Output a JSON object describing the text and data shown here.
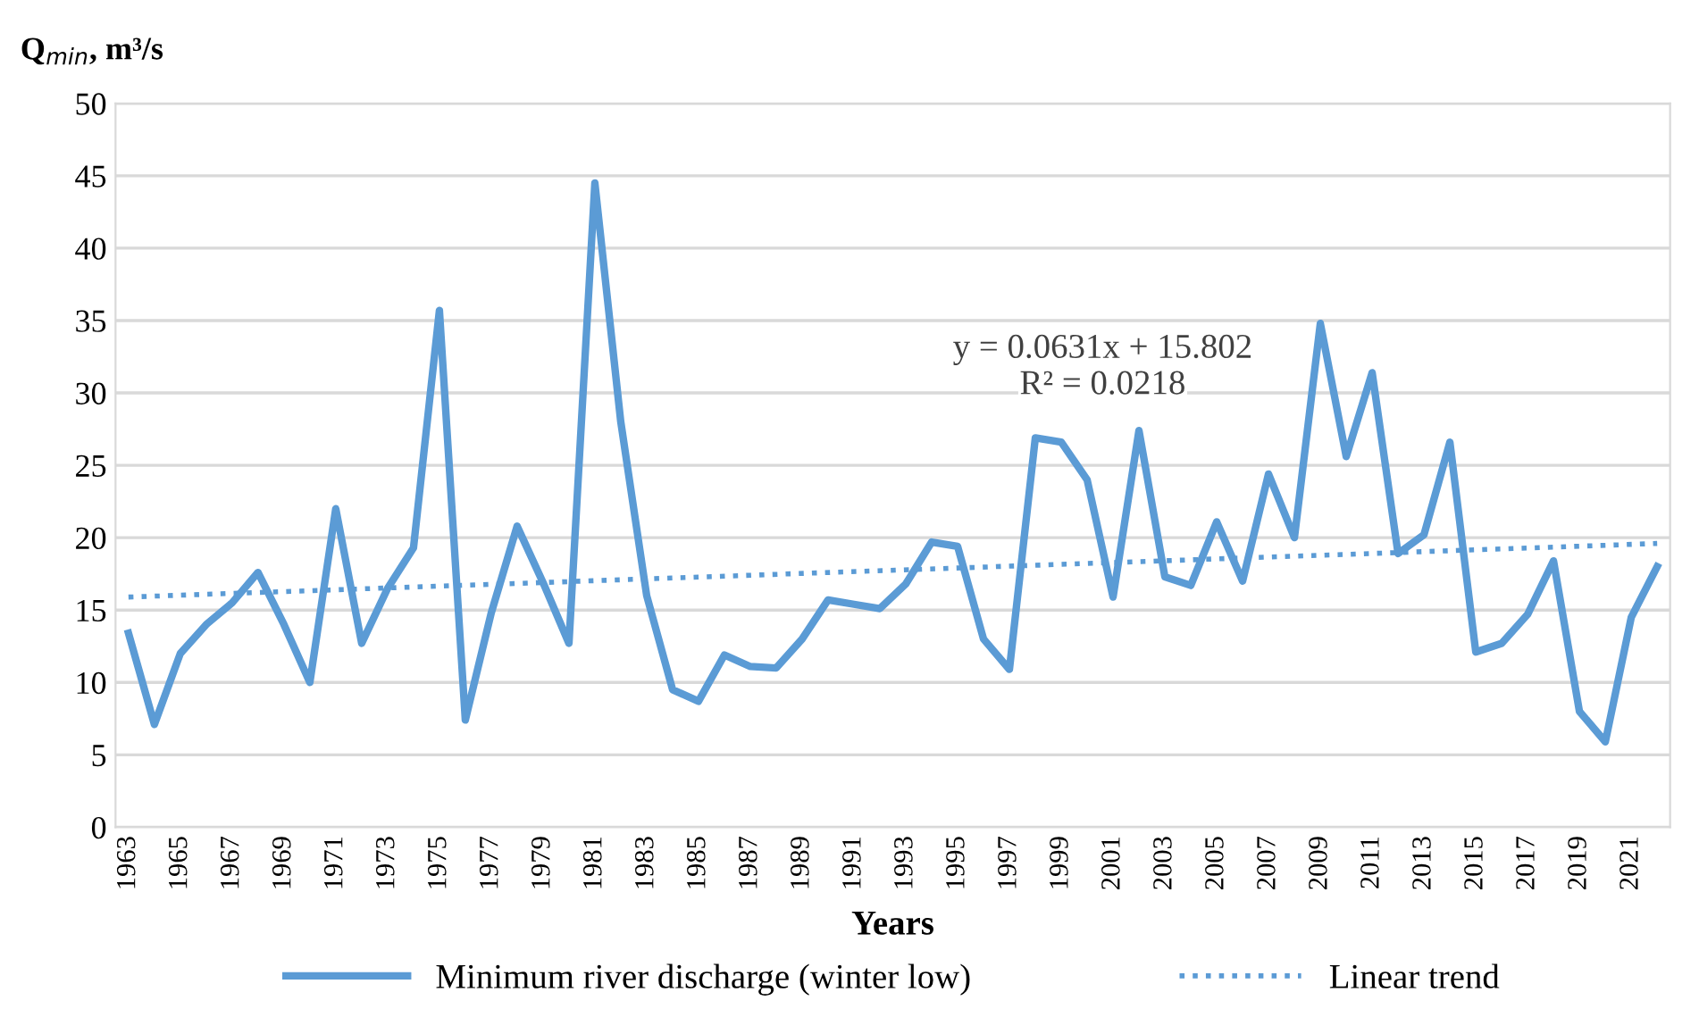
{
  "chart_data": {
    "type": "line",
    "ylabel": "Q$_{min}$, m³/s",
    "xlabel": "Years",
    "x": [
      1963,
      1964,
      1965,
      1966,
      1967,
      1968,
      1969,
      1970,
      1971,
      1972,
      1973,
      1974,
      1975,
      1976,
      1977,
      1978,
      1979,
      1980,
      1981,
      1982,
      1983,
      1984,
      1985,
      1986,
      1987,
      1988,
      1989,
      1990,
      1991,
      1992,
      1993,
      1994,
      1995,
      1996,
      1997,
      1998,
      1999,
      2000,
      2001,
      2002,
      2003,
      2004,
      2005,
      2006,
      2007,
      2008,
      2009,
      2010,
      2011,
      2012,
      2013,
      2014,
      2015,
      2016,
      2017,
      2018,
      2019,
      2020,
      2021,
      2022
    ],
    "series": [
      {
        "name": "Minimum river discharge (winter low)",
        "color": "#5b9bd5",
        "line_style": "solid",
        "values": [
          13.4,
          7.1,
          12,
          14,
          15.5,
          17.6,
          14,
          10,
          22,
          12.7,
          16.5,
          19.3,
          35.7,
          7.4,
          14.8,
          20.8,
          16.9,
          12.7,
          44.5,
          28,
          16,
          9.5,
          8.7,
          11.9,
          11.1,
          11,
          13,
          15.7,
          15.4,
          15.1,
          16.8,
          19.7,
          19.4,
          13,
          10.9,
          26.9,
          26.6,
          24,
          15.9,
          27.4,
          17.3,
          16.7,
          21.1,
          17,
          24.4,
          20,
          34.8,
          25.6,
          31.4,
          18.9,
          20.2,
          26.6,
          12.1,
          12.7,
          14.7,
          18.4,
          8,
          5.9,
          14.5,
          18
        ]
      },
      {
        "name": "Linear trend",
        "type": "line",
        "color": "#5b9bd5",
        "line_style": "dotted",
        "x": [
          1963,
          2022
        ],
        "values": [
          15.9,
          19.6
        ]
      }
    ],
    "annotations": [
      "y = 0.0631x + 15.802",
      "R² = 0.0218"
    ],
    "xlim": [
      1962.5,
      2022.5
    ],
    "xticks": [
      1963,
      1965,
      1967,
      1969,
      1971,
      1973,
      1975,
      1977,
      1979,
      1981,
      1983,
      1985,
      1987,
      1989,
      1991,
      1993,
      1995,
      1997,
      1999,
      2001,
      2003,
      2005,
      2007,
      2009,
      2011,
      2013,
      2015,
      2017,
      2019,
      2021
    ],
    "ylim": [
      0,
      50
    ],
    "yticks": [
      0,
      5,
      10,
      15,
      20,
      25,
      30,
      35,
      40,
      45,
      50
    ],
    "grid": "y",
    "legend": "bottom",
    "marker": "none"
  }
}
